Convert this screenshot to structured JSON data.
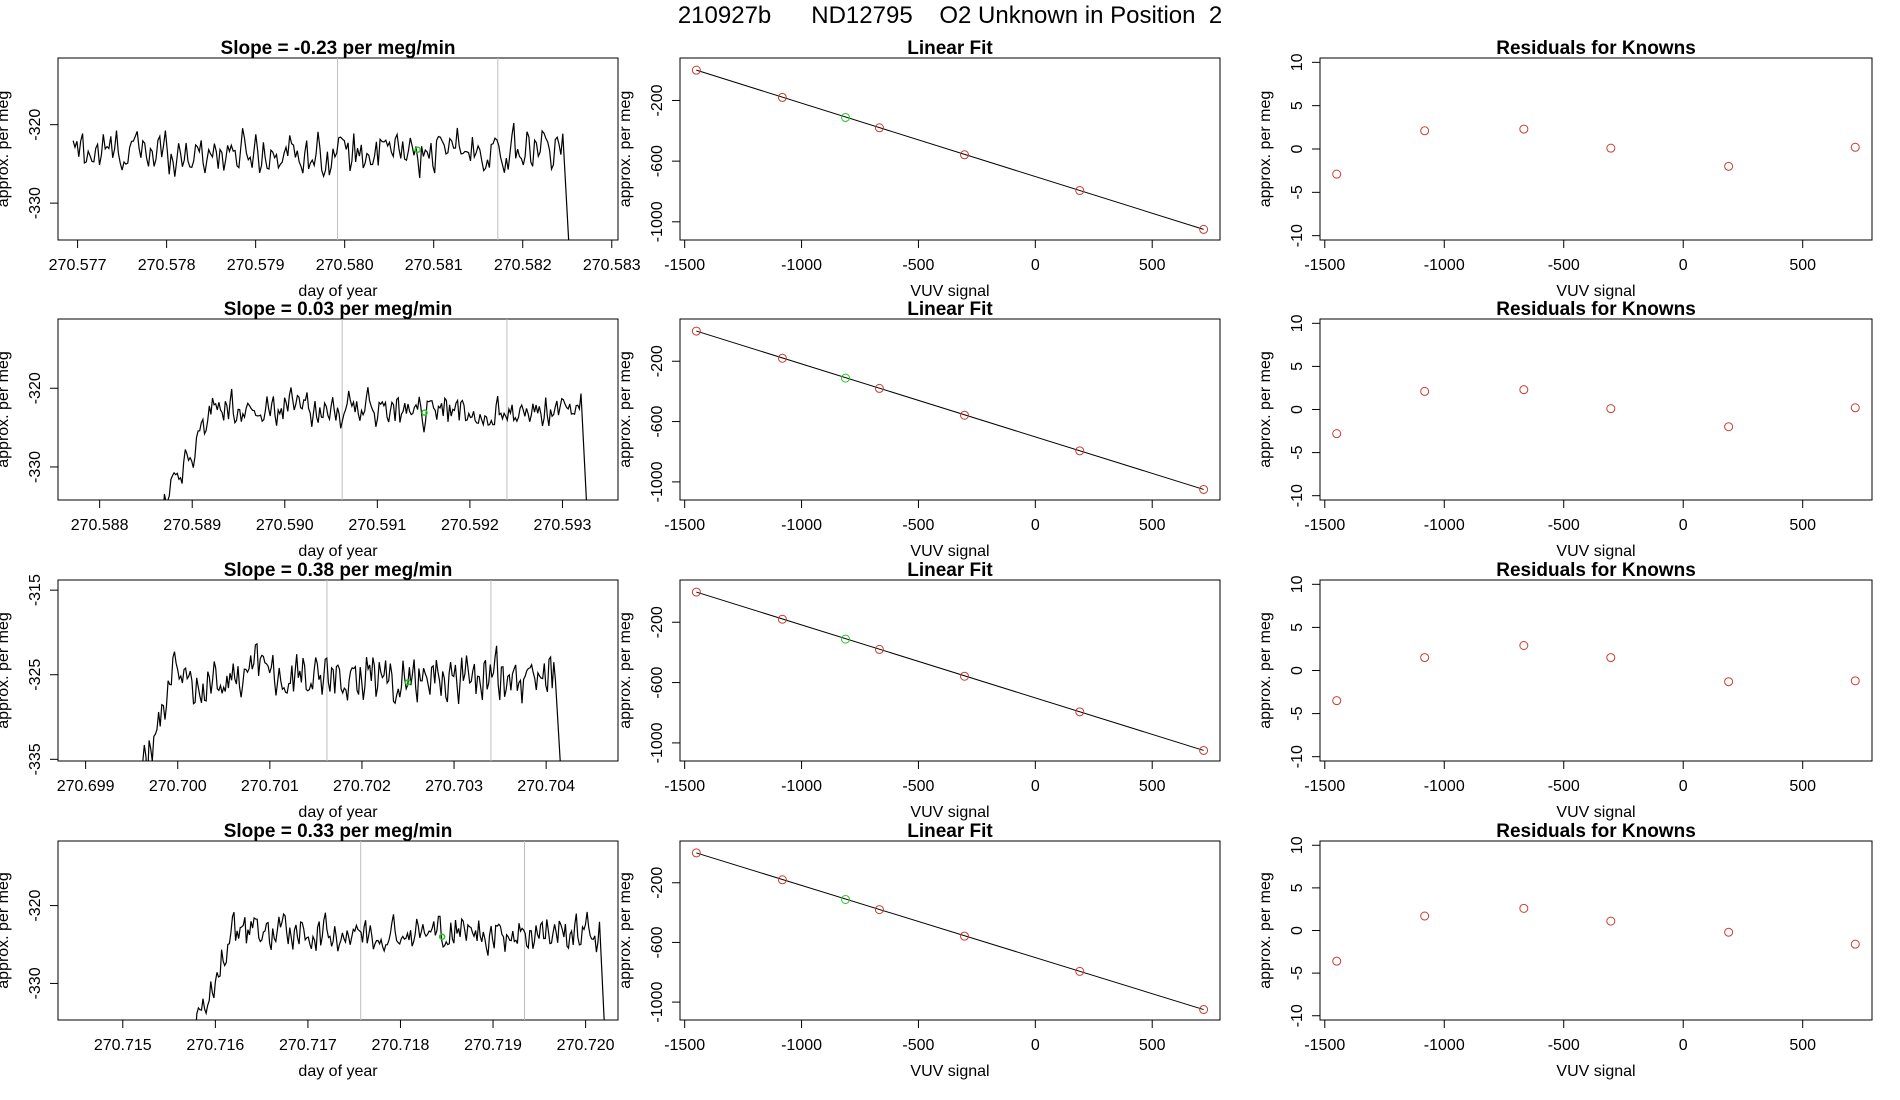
{
  "page": {
    "title": "210927b      ND12795    O2 Unknown in Position  2"
  },
  "colors": {
    "line": "#000000",
    "known_point": "#cd3b2f",
    "unknown_point": "#22c922",
    "vline": "#bebebe"
  },
  "chart_data": [
    {
      "type": "line",
      "row": 1,
      "panel": "time-series",
      "title": "Slope =  -0.23  per meg/min",
      "xlabel": "day of year",
      "ylabel": "approx. per meg",
      "xlim": [
        270.57678,
        270.58307
      ],
      "ylim": [
        -334.7,
        -311.5
      ],
      "xticks": [
        "270.577",
        "270.578",
        "270.579",
        "270.580",
        "270.581",
        "270.582",
        "270.583"
      ],
      "yticks": [
        "-320",
        "-330"
      ],
      "x_start": 270.57695,
      "x_end": 270.58245,
      "drop_end": 270.58254,
      "mean": -323.5,
      "amp": 2.8,
      "ramp": false,
      "ramp_end": 270.57695,
      "vlines": [
        270.57992,
        270.58172
      ],
      "highlight": {
        "x": 270.58082,
        "y": -323.2
      }
    },
    {
      "type": "scatter",
      "row": 1,
      "panel": "linear-fit",
      "title": "Linear Fit",
      "xlabel": "VUV signal",
      "ylabel": "approx. per meg",
      "xlim": [
        -1520,
        790
      ],
      "ylim": [
        -1120,
        80
      ],
      "xticks": [
        "-1500",
        "-1000",
        "-500",
        "0",
        "500"
      ],
      "yticks": [
        "-200",
        "-600",
        "-1000"
      ],
      "fit_line": {
        "x": [
          -1450,
          720
        ],
        "y": [
          0,
          -1050
        ]
      },
      "known_points": {
        "x": [
          -1450,
          -1082,
          -667,
          -303,
          190,
          720
        ],
        "y": [
          0,
          -180,
          -380,
          -558,
          -794,
          -1050
        ]
      },
      "unknown_point": {
        "x": -812,
        "y": -312
      }
    },
    {
      "type": "scatter",
      "row": 1,
      "panel": "residuals",
      "title": "Residuals for Knowns",
      "xlabel": "VUV signal",
      "ylabel": "approx. per meg",
      "xlim": [
        -1520,
        790
      ],
      "ylim": [
        -10.5,
        10.5
      ],
      "xticks": [
        "-1500",
        "-1000",
        "-500",
        "0",
        "500"
      ],
      "yticks": [
        "10",
        "5",
        "0",
        "-5",
        "-10"
      ],
      "x": [
        -1450,
        -1082,
        -667,
        -303,
        190,
        720
      ],
      "y": [
        -2.9,
        2.1,
        2.3,
        0.1,
        -2.0,
        0.2
      ]
    },
    {
      "type": "line",
      "row": 2,
      "panel": "time-series",
      "title": "Slope =  0.03  per meg/min",
      "xlabel": "day of year",
      "ylabel": "approx. per meg",
      "xlim": [
        270.58755,
        270.5936
      ],
      "ylim": [
        -334.2,
        -311.2
      ],
      "xticks": [
        "270.588",
        "270.589",
        "270.590",
        "270.591",
        "270.592",
        "270.593"
      ],
      "yticks": [
        "-320",
        "-330"
      ],
      "x_start": 270.5887,
      "x_end": 270.5932,
      "drop_end": 270.59328,
      "mean": -322.7,
      "amp": 2.2,
      "ramp": true,
      "ramp_end": 270.5892,
      "vlines": [
        270.59062,
        270.5924
      ],
      "highlight": {
        "x": 270.59151,
        "y": -323.1
      }
    },
    {
      "type": "scatter",
      "row": 2,
      "panel": "linear-fit",
      "title": "Linear Fit",
      "xlabel": "VUV signal",
      "ylabel": "approx. per meg",
      "xlim": [
        -1520,
        790
      ],
      "ylim": [
        -1120,
        80
      ],
      "xticks": [
        "-1500",
        "-1000",
        "-500",
        "0",
        "500"
      ],
      "yticks": [
        "-200",
        "-600",
        "-1000"
      ],
      "fit_line": {
        "x": [
          -1450,
          720
        ],
        "y": [
          0,
          -1050
        ]
      },
      "known_points": {
        "x": [
          -1450,
          -1082,
          -667,
          -303,
          190,
          720
        ],
        "y": [
          0,
          -180,
          -380,
          -558,
          -794,
          -1050
        ]
      },
      "unknown_point": {
        "x": -812,
        "y": -312
      }
    },
    {
      "type": "scatter",
      "row": 2,
      "panel": "residuals",
      "title": "Residuals for Knowns",
      "xlabel": "VUV signal",
      "ylabel": "approx. per meg",
      "xlim": [
        -1520,
        790
      ],
      "ylim": [
        -10.5,
        10.5
      ],
      "xticks": [
        "-1500",
        "-1000",
        "-500",
        "0",
        "500"
      ],
      "yticks": [
        "10",
        "5",
        "0",
        "-5",
        "-10"
      ],
      "x": [
        -1450,
        -1082,
        -667,
        -303,
        190,
        720
      ],
      "y": [
        -2.8,
        2.1,
        2.3,
        0.1,
        -2.0,
        0.2
      ]
    },
    {
      "type": "line",
      "row": 3,
      "panel": "time-series",
      "title": "Slope =  0.38  per meg/min",
      "xlabel": "day of year",
      "ylabel": "approx. per meg",
      "xlim": [
        270.6987,
        270.70478
      ],
      "ylim": [
        -335.2,
        -313.8
      ],
      "xticks": [
        "270.699",
        "270.700",
        "270.701",
        "270.702",
        "270.703",
        "270.704"
      ],
      "yticks": [
        "-315",
        "-325",
        "-335"
      ],
      "x_start": 270.69962,
      "x_end": 270.7041,
      "drop_end": 270.70418,
      "mean": -325.3,
      "amp": 3.0,
      "ramp": true,
      "ramp_end": 270.6999,
      "vlines": [
        270.70162,
        270.7034
      ],
      "highlight": {
        "x": 270.7025,
        "y": -325.9
      }
    },
    {
      "type": "scatter",
      "row": 3,
      "panel": "linear-fit",
      "title": "Linear Fit",
      "xlabel": "VUV signal",
      "ylabel": "approx. per meg",
      "xlim": [
        -1520,
        790
      ],
      "ylim": [
        -1120,
        80
      ],
      "xticks": [
        "-1500",
        "-1000",
        "-500",
        "0",
        "500"
      ],
      "yticks": [
        "-200",
        "-600",
        "-1000"
      ],
      "fit_line": {
        "x": [
          -1450,
          720
        ],
        "y": [
          0,
          -1050
        ]
      },
      "known_points": {
        "x": [
          -1450,
          -1082,
          -667,
          -303,
          190,
          720
        ],
        "y": [
          0,
          -180,
          -380,
          -558,
          -794,
          -1050
        ]
      },
      "unknown_point": {
        "x": -812,
        "y": -312
      }
    },
    {
      "type": "scatter",
      "row": 3,
      "panel": "residuals",
      "title": "Residuals for Knowns",
      "xlabel": "VUV signal",
      "ylabel": "approx. per meg",
      "xlim": [
        -1520,
        790
      ],
      "ylim": [
        -10.5,
        10.5
      ],
      "xticks": [
        "-1500",
        "-1000",
        "-500",
        "0",
        "500"
      ],
      "yticks": [
        "10",
        "5",
        "0",
        "-5",
        "-10"
      ],
      "x": [
        -1450,
        -1082,
        -667,
        -303,
        190,
        720
      ],
      "y": [
        -3.5,
        1.5,
        2.9,
        1.5,
        -1.3,
        -1.2
      ]
    },
    {
      "type": "line",
      "row": 4,
      "panel": "time-series",
      "title": "Slope =  0.33  per meg/min",
      "xlabel": "day of year",
      "ylabel": "approx. per meg",
      "xlim": [
        270.7143,
        270.72035
      ],
      "ylim": [
        -334.7,
        -311.7
      ],
      "xticks": [
        "270.715",
        "270.716",
        "270.717",
        "270.718",
        "270.719",
        "270.720"
      ],
      "yticks": [
        "-320",
        "-330"
      ],
      "x_start": 270.7158,
      "x_end": 270.72015,
      "drop_end": 270.72022,
      "mean": -323.5,
      "amp": 2.3,
      "ramp": true,
      "ramp_end": 270.7162,
      "vlines": [
        270.71757,
        270.71934
      ],
      "highlight": {
        "x": 270.71845,
        "y": -324.0
      }
    },
    {
      "type": "scatter",
      "row": 4,
      "panel": "linear-fit",
      "title": "Linear Fit",
      "xlabel": "VUV signal",
      "ylabel": "approx. per meg",
      "xlim": [
        -1520,
        790
      ],
      "ylim": [
        -1120,
        80
      ],
      "xticks": [
        "-1500",
        "-1000",
        "-500",
        "0",
        "500"
      ],
      "yticks": [
        "-200",
        "-600",
        "-1000"
      ],
      "fit_line": {
        "x": [
          -1450,
          720
        ],
        "y": [
          0,
          -1050
        ]
      },
      "known_points": {
        "x": [
          -1450,
          -1082,
          -667,
          -303,
          190,
          720
        ],
        "y": [
          0,
          -180,
          -380,
          -558,
          -794,
          -1050
        ]
      },
      "unknown_point": {
        "x": -812,
        "y": -312
      }
    },
    {
      "type": "scatter",
      "row": 4,
      "panel": "residuals",
      "title": "Residuals for Knowns",
      "xlabel": "VUV signal",
      "ylabel": "approx. per meg",
      "xlim": [
        -1520,
        790
      ],
      "ylim": [
        -10.5,
        10.5
      ],
      "xticks": [
        "-1500",
        "-1000",
        "-500",
        "0",
        "500"
      ],
      "yticks": [
        "10",
        "5",
        "0",
        "-5",
        "-10"
      ],
      "x": [
        -1450,
        -1082,
        -667,
        -303,
        190,
        720
      ],
      "y": [
        -3.6,
        1.7,
        2.6,
        1.1,
        -0.2,
        -1.6
      ]
    }
  ]
}
